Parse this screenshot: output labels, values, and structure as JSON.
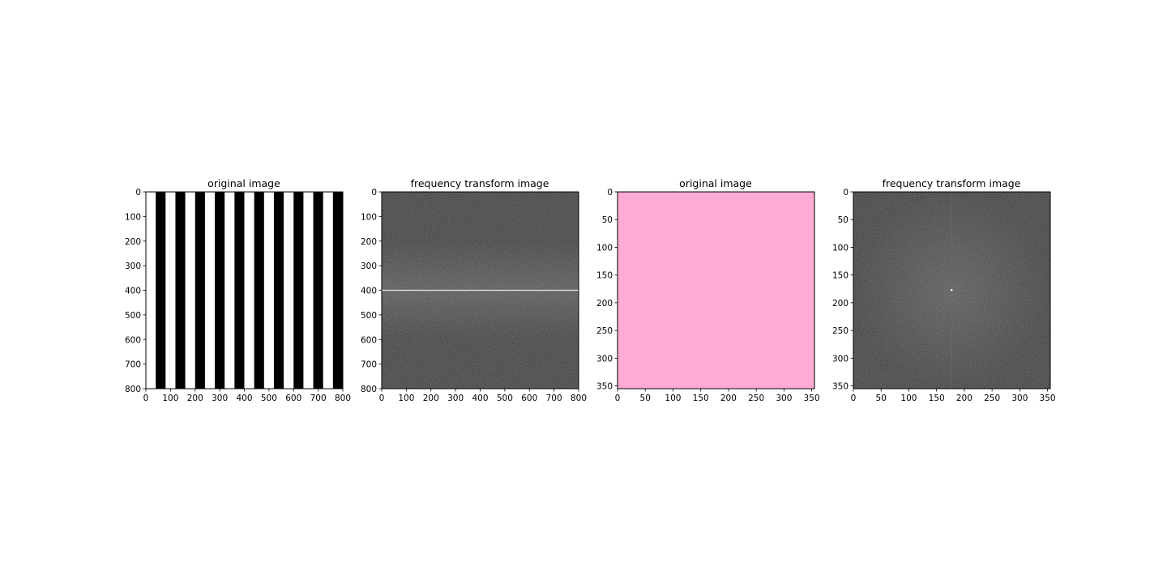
{
  "colors": {
    "pink": "#ffabd6",
    "dark": "#3a3a3a",
    "black": "#000000",
    "white": "#ffffff"
  },
  "chart_data": [
    {
      "type": "heatmap",
      "title": "original image",
      "content": "vertical black and white stripes",
      "xlim": [
        0,
        800
      ],
      "ylim": [
        800,
        0
      ],
      "xticks": [
        0,
        100,
        200,
        300,
        400,
        500,
        600,
        700,
        800
      ],
      "yticks": [
        0,
        100,
        200,
        300,
        400,
        500,
        600,
        700,
        800
      ],
      "stripe_period": 80,
      "xlabel": "",
      "ylabel": ""
    },
    {
      "type": "heatmap",
      "title": "frequency transform image",
      "content": "grayscale noisy magnitude spectrum with bright horizontal line",
      "xlim": [
        0,
        800
      ],
      "ylim": [
        800,
        0
      ],
      "xticks": [
        0,
        100,
        200,
        300,
        400,
        500,
        600,
        700,
        800
      ],
      "yticks": [
        0,
        100,
        200,
        300,
        400,
        500,
        600,
        700,
        800
      ],
      "bright_line_y": 400,
      "xlabel": "",
      "ylabel": ""
    },
    {
      "type": "heatmap",
      "title": "original image",
      "content": "uniform pink image",
      "xlim": [
        0,
        355
      ],
      "ylim": [
        355,
        0
      ],
      "xticks": [
        0,
        50,
        100,
        150,
        200,
        250,
        300,
        350
      ],
      "yticks": [
        0,
        50,
        100,
        150,
        200,
        250,
        300,
        350
      ],
      "xlabel": "",
      "ylabel": ""
    },
    {
      "type": "heatmap",
      "title": "frequency transform image",
      "content": "grayscale noisy magnitude spectrum with center peak",
      "xlim": [
        0,
        355
      ],
      "ylim": [
        355,
        0
      ],
      "xticks": [
        0,
        50,
        100,
        150,
        200,
        250,
        300,
        350
      ],
      "yticks": [
        0,
        50,
        100,
        150,
        200,
        250,
        300,
        350
      ],
      "center": [
        177,
        177
      ],
      "xlabel": "",
      "ylabel": ""
    }
  ]
}
